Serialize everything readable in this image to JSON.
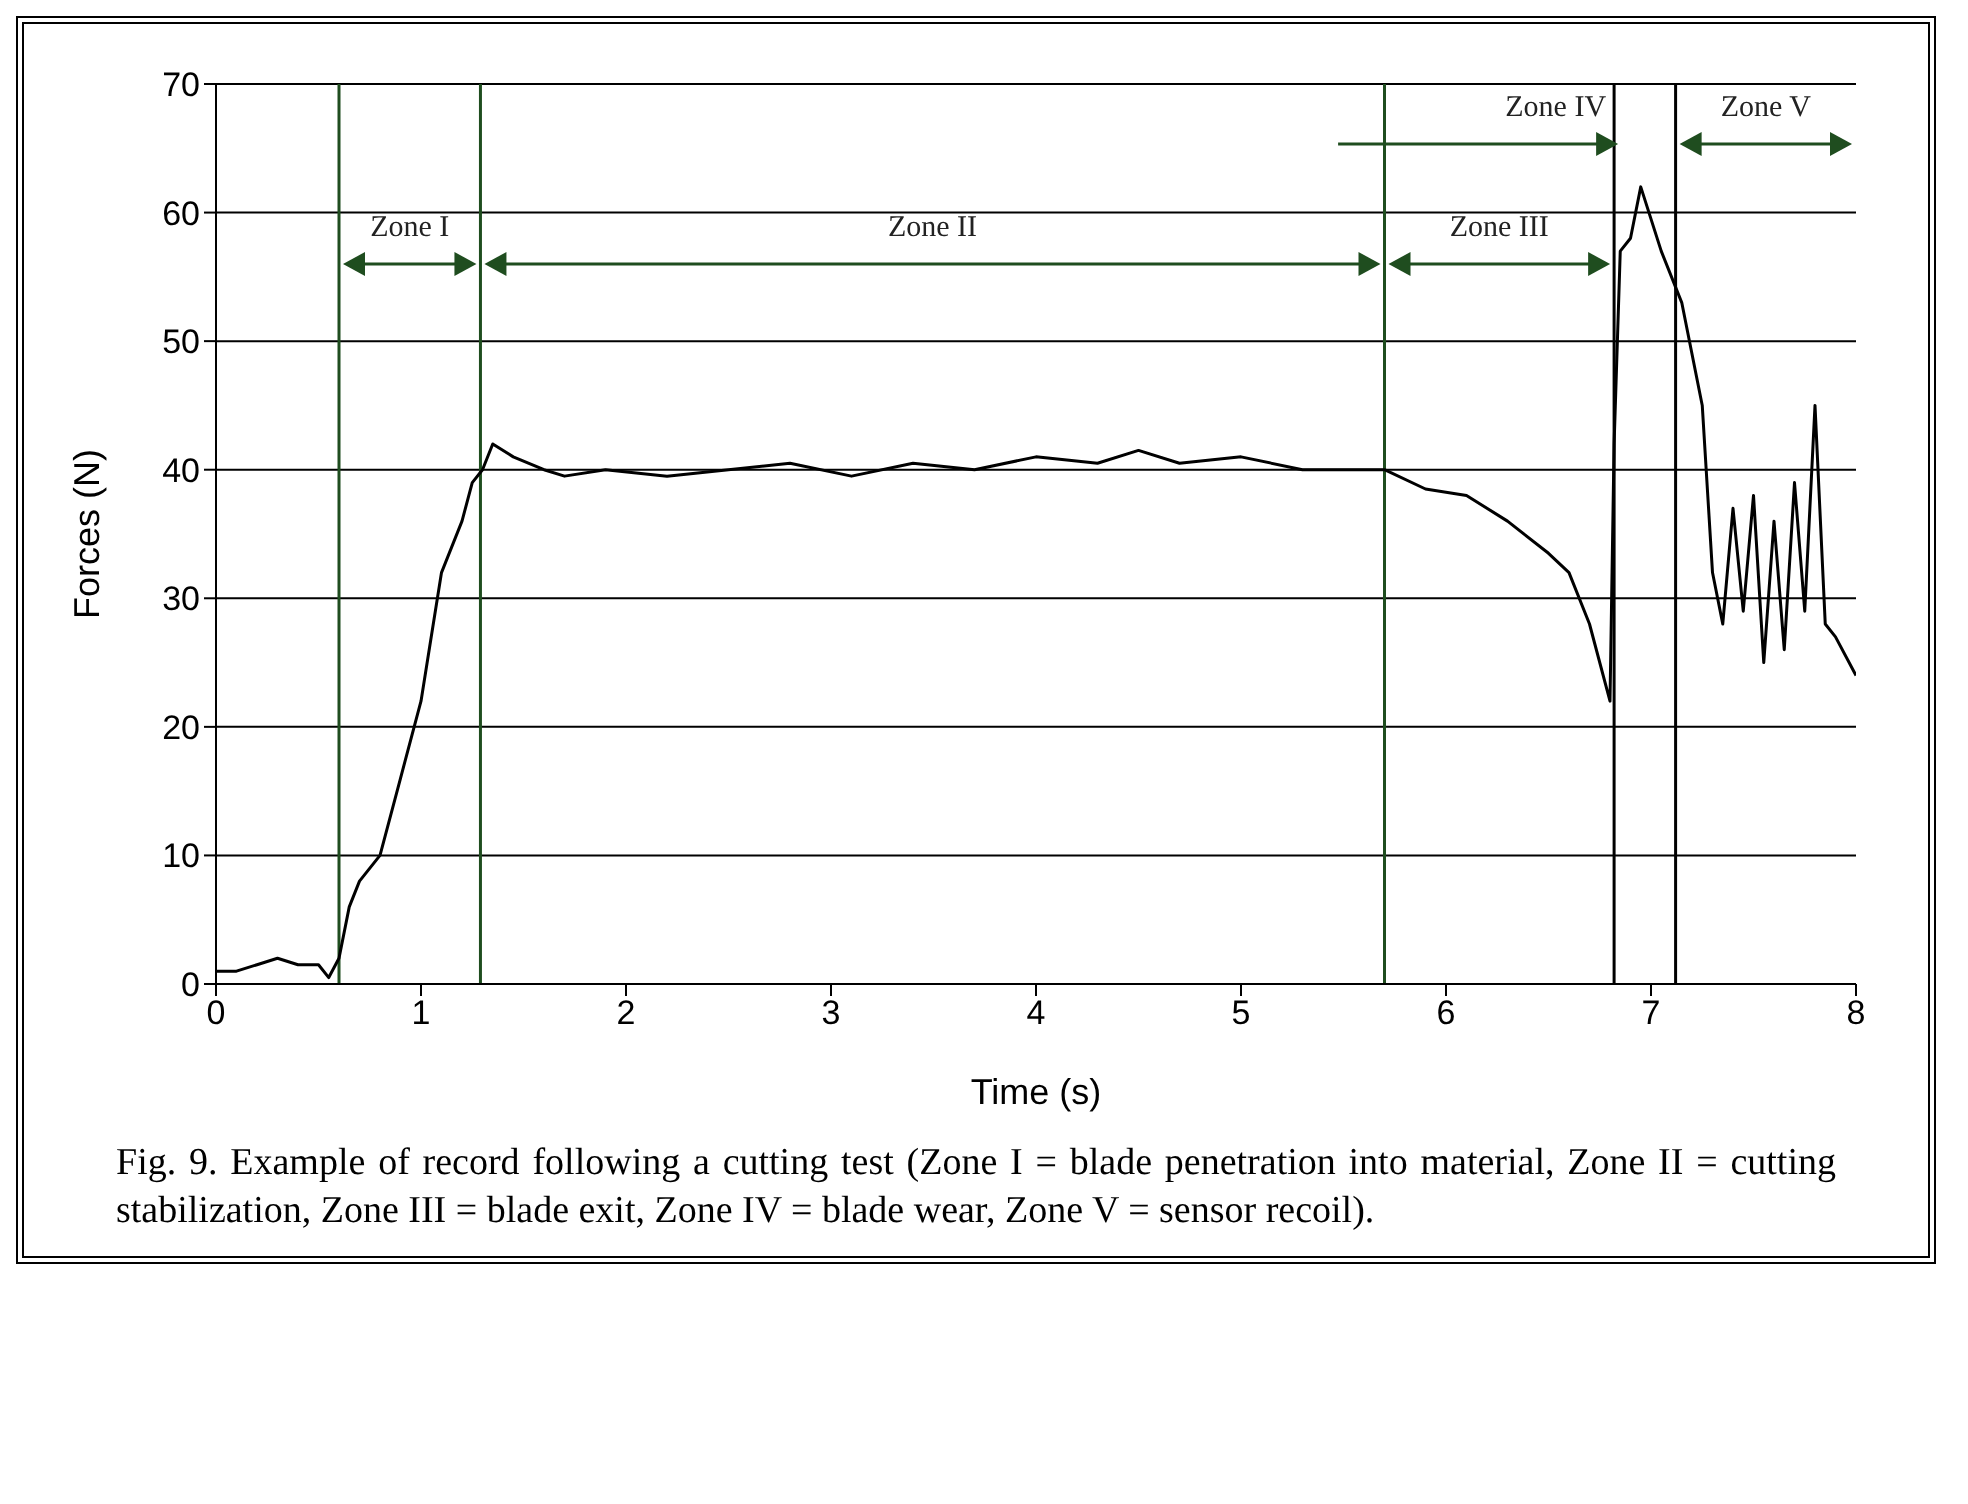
{
  "chart_data": {
    "type": "line",
    "xlabel": "Time (s)",
    "ylabel": "Forces (N)",
    "xlim": [
      0,
      8
    ],
    "xticks": [
      0,
      1,
      2,
      3,
      4,
      5,
      6,
      7,
      8
    ],
    "ylim": [
      0,
      70
    ],
    "yticks": [
      0,
      10,
      20,
      30,
      40,
      50,
      60,
      70
    ],
    "grid": "y",
    "marker": "none",
    "line_style": "solid",
    "x": [
      0,
      0.1,
      0.2,
      0.3,
      0.4,
      0.5,
      0.55,
      0.6,
      0.65,
      0.7,
      0.8,
      0.9,
      1.0,
      1.05,
      1.1,
      1.2,
      1.25,
      1.3,
      1.35,
      1.45,
      1.6,
      1.7,
      1.9,
      2.2,
      2.5,
      2.8,
      3.1,
      3.4,
      3.7,
      4.0,
      4.3,
      4.5,
      4.7,
      5.0,
      5.3,
      5.7,
      5.9,
      6.1,
      6.3,
      6.5,
      6.6,
      6.7,
      6.8,
      6.82,
      6.85,
      6.9,
      6.95,
      7.05,
      7.15,
      7.25,
      7.3,
      7.35,
      7.4,
      7.45,
      7.5,
      7.55,
      7.6,
      7.65,
      7.7,
      7.75,
      7.8,
      7.85,
      7.9,
      8.0
    ],
    "series": [
      {
        "color": "#000000",
        "values": [
          1,
          1,
          1.5,
          2,
          1.5,
          1.5,
          0.5,
          2,
          6,
          8,
          10,
          16,
          22,
          27,
          32,
          36,
          39,
          40,
          42,
          41,
          40,
          39.5,
          40,
          39.5,
          40,
          40.5,
          39.5,
          40.5,
          40,
          41,
          40.5,
          41.5,
          40.5,
          41,
          40,
          40,
          38.5,
          38,
          36,
          33.5,
          32,
          28,
          22,
          42,
          57,
          58,
          62,
          57,
          53,
          45,
          32,
          28,
          37,
          29,
          38,
          25,
          36,
          26,
          39,
          29,
          45,
          28,
          27,
          24
        ]
      }
    ],
    "ref_lines": [
      {
        "axis": "x",
        "value": 0.6,
        "color": "#1f4d1f"
      },
      {
        "axis": "x",
        "value": 1.29,
        "color": "#1f4d1f"
      },
      {
        "axis": "x",
        "value": 5.7,
        "color": "#1f4d1f"
      },
      {
        "axis": "x",
        "value": 6.82,
        "color": "#000000"
      },
      {
        "axis": "x",
        "value": 7.12,
        "color": "#000000"
      }
    ],
    "annotations": [
      "Zone I",
      "Zone II",
      "Zone III",
      "Zone IV",
      "Zone V",
      "Fig. 9. Example of record following a cutting test (Zone I = blade penetration into material, Zone II = cutting stabilization, Zone III = blade exit, Zone IV = blade wear, Zone V = sensor recoil)."
    ]
  }
}
